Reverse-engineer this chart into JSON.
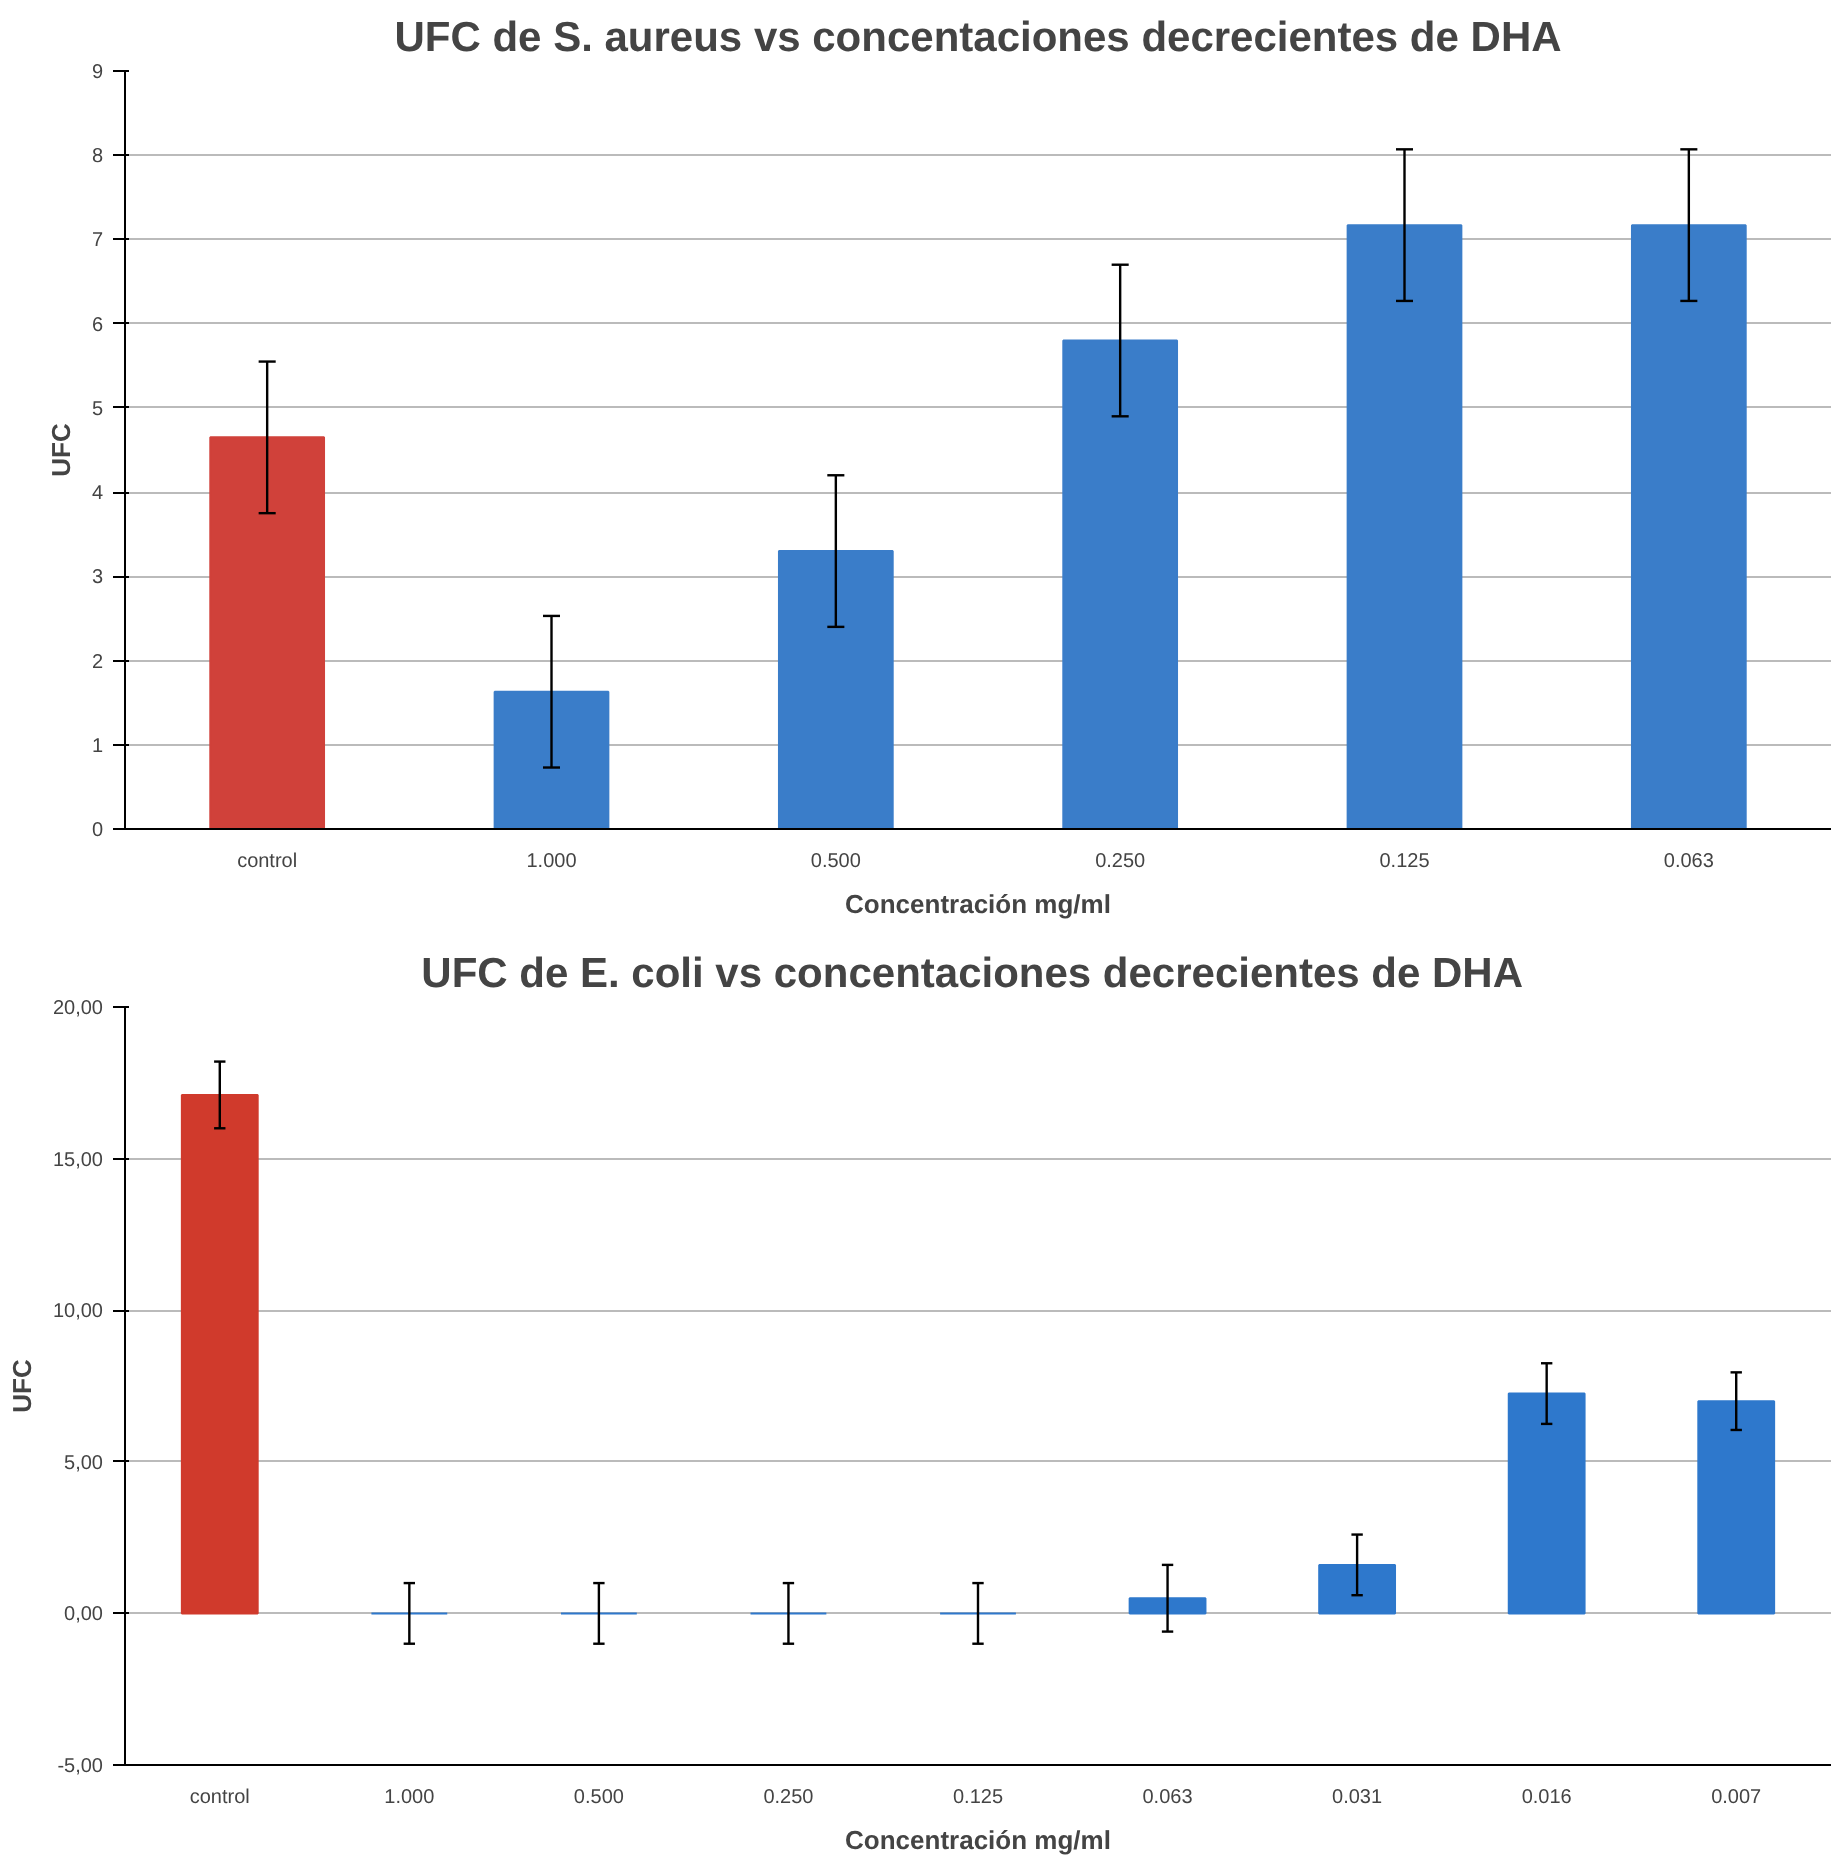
{
  "chart_data": [
    {
      "type": "bar",
      "title": "UFC de S. aureus vs concentaciones decrecientes de DHA",
      "xlabel": "Concentración mg/ml",
      "ylabel": "UFC",
      "categories": [
        "control",
        "1.000",
        "0.500",
        "0.250",
        "0.125",
        "0.063"
      ],
      "values": [
        4.65,
        1.63,
        3.3,
        5.8,
        7.17,
        7.17
      ],
      "errors": [
        0.9,
        0.9,
        0.9,
        0.9,
        0.9,
        0.9
      ],
      "colors": [
        "#d0413a",
        "#3a7dc9",
        "#3a7dc9",
        "#3a7dc9",
        "#3a7dc9",
        "#3a7dc9"
      ],
      "ylim": [
        0,
        9
      ],
      "yticks": [
        0,
        1,
        2,
        3,
        4,
        5,
        6,
        7,
        8,
        9
      ],
      "grid": "y"
    },
    {
      "type": "bar",
      "title": "UFC de E. coli  vs concentaciones decrecientes de DHA",
      "xlabel": "Concentración mg/ml",
      "ylabel": "UFC",
      "categories": [
        "control",
        "1.000",
        "0.500",
        "0.250",
        "0.125",
        "0.063",
        "0.031",
        "0.016",
        "0.007"
      ],
      "values": [
        17.1,
        0,
        0,
        0,
        0,
        0.5,
        1.6,
        7.25,
        7.0
      ],
      "errors": [
        1.1,
        1.0,
        1.0,
        1.0,
        1.0,
        1.1,
        1.0,
        1.0,
        0.95
      ],
      "colors": [
        "#d03a2c",
        "#2e78cc",
        "#2e78cc",
        "#2e78cc",
        "#2e78cc",
        "#2e78cc",
        "#2e78cc",
        "#2e78cc",
        "#2e78cc"
      ],
      "ylim": [
        -5,
        20
      ],
      "yticks": [
        {
          "value": -5,
          "label": "-5,00"
        },
        {
          "value": 0,
          "label": "0,00"
        },
        {
          "value": 5,
          "label": "5,00"
        },
        {
          "value": 10,
          "label": "10,00"
        },
        {
          "value": 15,
          "label": "15,00"
        },
        {
          "value": 20,
          "label": "20,00"
        }
      ],
      "grid": "y"
    }
  ]
}
